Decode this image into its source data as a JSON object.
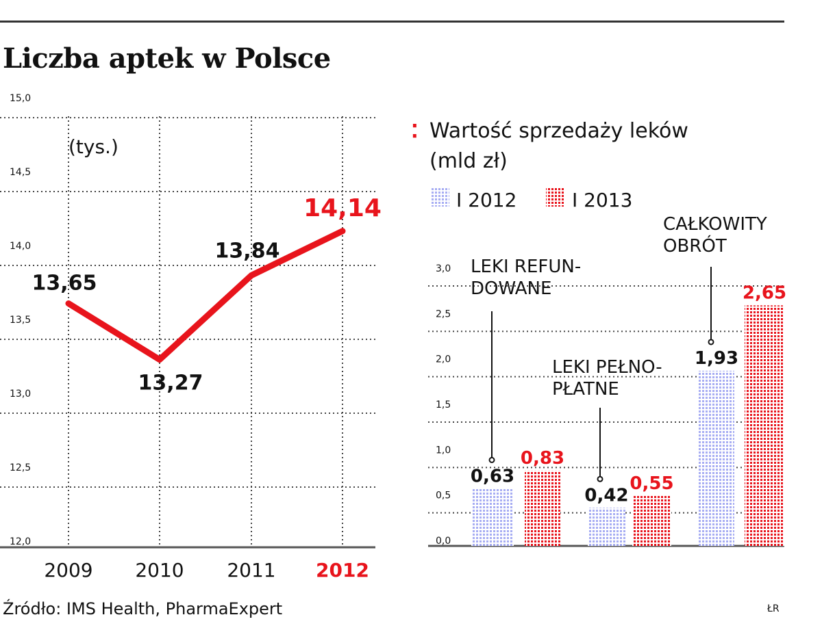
{
  "header": {
    "title": "Liczba aptek w Polsce"
  },
  "footer": {
    "source": "Źródło: IMS Health, PharmaExpert",
    "credit": "ŁR"
  },
  "colors": {
    "accent_red": "#e8141c",
    "blue_2012": "#a7adf3",
    "red_2013": "#e8141c",
    "grid": "#444444",
    "text": "#111111"
  },
  "chart_data": [
    {
      "type": "line",
      "title": "Liczba aptek w Polsce",
      "unit_label": "(tys.)",
      "categories": [
        "2009",
        "2010",
        "2011",
        "2012"
      ],
      "highlight_category": "2012",
      "values": [
        13.65,
        13.27,
        13.84,
        14.14
      ],
      "value_labels": [
        "13,65",
        "13,27",
        "13,84",
        "14,14"
      ],
      "ylim": [
        12.0,
        15.0
      ],
      "yticks": [
        12.0,
        12.5,
        13.0,
        13.5,
        14.0,
        14.5,
        15.0
      ],
      "ytick_labels": [
        "12,0",
        "12,5",
        "13,0",
        "13,5",
        "14,0",
        "14,5",
        "15,0"
      ],
      "grid": true
    },
    {
      "type": "bar",
      "title": "Wartość sprzedaży leków",
      "title_line2": "(mld zł)",
      "legend_position": "top-left",
      "groups": [
        {
          "label_lines": [
            "LEKI REFUN-",
            "DOWANE"
          ]
        },
        {
          "label_lines": [
            "LEKI PEŁNO-",
            "PŁATNE"
          ]
        },
        {
          "label_lines": [
            "CAŁKOWITY",
            "OBRÓT"
          ]
        }
      ],
      "series": [
        {
          "name": "I 2012",
          "values": [
            0.63,
            0.42,
            1.93
          ],
          "value_labels": [
            "0,63",
            "0,42",
            "1,93"
          ]
        },
        {
          "name": "I 2013",
          "values": [
            0.83,
            0.55,
            2.65
          ],
          "value_labels": [
            "0,83",
            "0,55",
            "2,65"
          ]
        }
      ],
      "ylim": [
        0.0,
        3.0
      ],
      "yticks": [
        0.0,
        0.5,
        1.0,
        1.5,
        2.0,
        2.5,
        3.0
      ],
      "ytick_labels": [
        "0,0",
        "0,5",
        "1,0",
        "1,5",
        "2,0",
        "2,5",
        "3,0"
      ],
      "grid": true
    }
  ]
}
